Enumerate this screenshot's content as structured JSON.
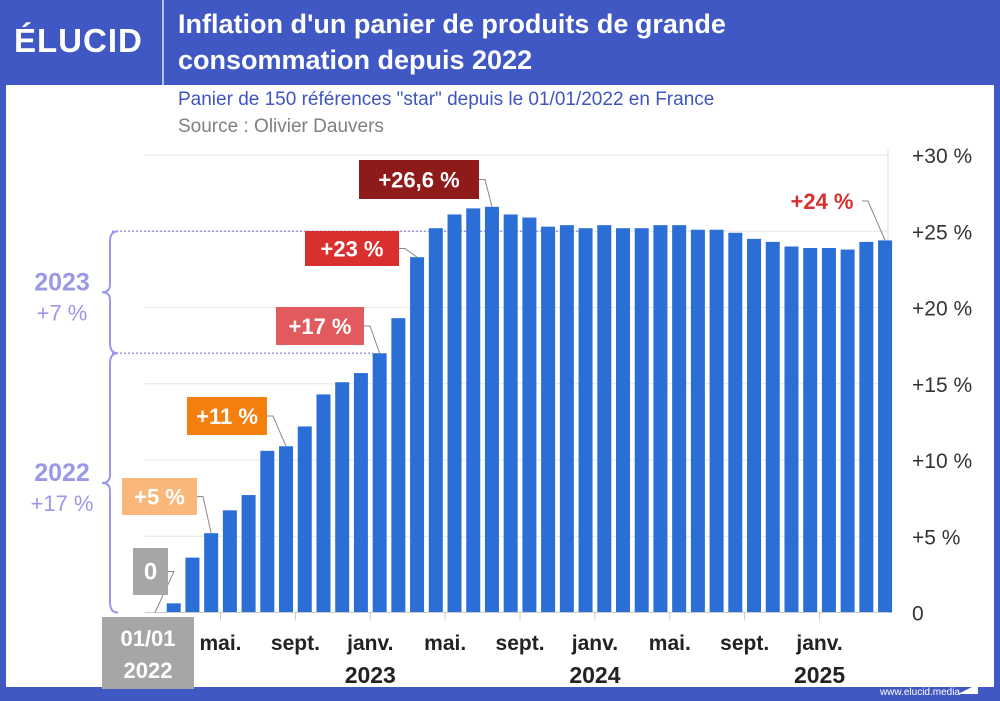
{
  "header": {
    "logo": "ÉLUCID",
    "title_line1": "Inflation d'un panier de produits de grande",
    "title_line2": "consommation depuis 2022",
    "subtitle": "Panier de 150 références \"star\" depuis le 01/01/2022 en France",
    "source": "Source : Olivier Dauvers"
  },
  "footer": {
    "url": "www.elucid.media"
  },
  "colors": {
    "frame": "#3f58c4",
    "bar": "#2b6fd6",
    "bracket": "#9c98e8",
    "title_text": "#ffffff",
    "subtitle": "#3e55c0"
  },
  "chart_data": {
    "type": "bar",
    "x_start": "01/01 2022",
    "x_months": [
      "2022-01",
      "2022-02",
      "2022-03",
      "2022-04",
      "2022-05",
      "2022-06",
      "2022-07",
      "2022-08",
      "2022-09",
      "2022-10",
      "2022-11",
      "2022-12",
      "2023-01",
      "2023-02",
      "2023-03",
      "2023-04",
      "2023-05",
      "2023-06",
      "2023-07",
      "2023-08",
      "2023-09",
      "2023-10",
      "2023-11",
      "2023-12",
      "2024-01",
      "2024-02",
      "2024-03",
      "2024-04",
      "2024-05",
      "2024-06",
      "2024-07",
      "2024-08",
      "2024-09",
      "2024-10",
      "2024-11",
      "2024-12",
      "2025-01",
      "2025-02",
      "2025-03",
      "2025-04"
    ],
    "values": [
      0,
      0.6,
      3.6,
      5.2,
      6.7,
      7.7,
      10.6,
      10.9,
      12.2,
      14.3,
      15.1,
      15.7,
      17.0,
      19.3,
      23.3,
      25.2,
      26.1,
      26.5,
      26.6,
      26.1,
      25.9,
      25.3,
      25.4,
      25.2,
      25.4,
      25.2,
      25.2,
      25.4,
      25.4,
      25.1,
      25.1,
      24.9,
      24.5,
      24.3,
      24.0,
      23.9,
      23.9,
      23.8,
      24.3,
      24.4
    ],
    "ylim": [
      0,
      30
    ],
    "y_axis_position": "right",
    "y_ticks": [
      "0",
      "+5 %",
      "+10 %",
      "+15 %",
      "+20 %",
      "+25 %",
      "+30 %"
    ],
    "y_tick_values": [
      0,
      5,
      10,
      15,
      20,
      25,
      30
    ],
    "x_tick_labels": [
      {
        "index": 0,
        "label": "01/01",
        "year": "2022"
      },
      {
        "index": 4,
        "label": "mai.",
        "year": ""
      },
      {
        "index": 8,
        "label": "sept.",
        "year": ""
      },
      {
        "index": 12,
        "label": "janv.",
        "year": "2023"
      },
      {
        "index": 16,
        "label": "mai.",
        "year": ""
      },
      {
        "index": 20,
        "label": "sept.",
        "year": ""
      },
      {
        "index": 24,
        "label": "janv.",
        "year": "2024"
      },
      {
        "index": 28,
        "label": "mai.",
        "year": ""
      },
      {
        "index": 32,
        "label": "sept.",
        "year": ""
      },
      {
        "index": 36,
        "label": "janv.",
        "year": "2025"
      }
    ],
    "grid": true,
    "annotations": [
      {
        "index": 0,
        "text": "0",
        "color": "#a6a6a6",
        "boxed": true
      },
      {
        "index": 3,
        "text": "+5 %",
        "color": "#f9b87a",
        "boxed": true
      },
      {
        "index": 7,
        "text": "+11 %",
        "color": "#f57f0e",
        "boxed": true
      },
      {
        "index": 12,
        "text": "+17 %",
        "color": "#e05a5e",
        "boxed": true
      },
      {
        "index": 14,
        "text": "+23 %",
        "color": "#d9302f",
        "boxed": true
      },
      {
        "index": 18,
        "text": "+26,6 %",
        "color": "#8e1a1a",
        "boxed": true
      },
      {
        "index": 39,
        "text": "+24 %",
        "color": "#d9302f",
        "boxed": false
      }
    ],
    "brackets": [
      {
        "year": "2023",
        "change": "+7 %",
        "from": 17,
        "to": 25
      },
      {
        "year": "2022",
        "change": "+17 %",
        "from": 0,
        "to": 17
      }
    ]
  }
}
